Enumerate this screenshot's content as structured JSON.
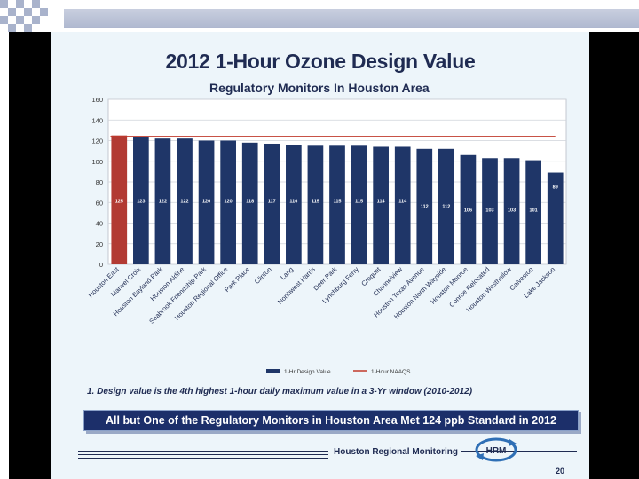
{
  "slide": {
    "title": "2012 1-Hour Ozone Design Value",
    "subtitle": "Regulatory Monitors In Houston Area",
    "footnote": "1.   Design value is the 4th highest 1-hour daily maximum value in a 3-Yr window (2010-2012)",
    "banner": "All but One of the Regulatory Monitors in Houston Area Met 124 ppb Standard in 2012",
    "org": "Houston Regional Monitoring",
    "logo_text": "HRM",
    "page_number": "20"
  },
  "colors": {
    "bar": "#1f3668",
    "highlight_bar": "#b23a33",
    "standard_line": "#c0392b",
    "text": "#1f2b52"
  },
  "chart_data": {
    "type": "bar",
    "categories": [
      "Houston East",
      "Manvel Croix",
      "Houston Bayland Park",
      "Houston Aldine",
      "Seabrook Friendship Park",
      "Houston Regional Office",
      "Park Place",
      "Clinton",
      "Lang",
      "Northwest Harris",
      "Deer Park",
      "Lynchburg Ferry",
      "Croquet",
      "Channelview",
      "Houston Texas Avenue",
      "Houston North Wayside",
      "Houston Monroe",
      "Conroe Relocated",
      "Houston Westhollow",
      "Galveston",
      "Lake Jackson"
    ],
    "series": [
      {
        "name": "1-Hr Design Value",
        "values": [
          125,
          123,
          122,
          122,
          120,
          120,
          118,
          117,
          116,
          115,
          115,
          115,
          114,
          114,
          112,
          112,
          106,
          103,
          103,
          101,
          89
        ]
      }
    ],
    "reference_lines": [
      {
        "name": "1-Hour NAAQS",
        "value": 124
      }
    ],
    "highlight_index": 0,
    "ylim": [
      0,
      160
    ],
    "yticks": [
      0,
      20,
      40,
      60,
      80,
      100,
      120,
      140,
      160
    ],
    "grid": true,
    "legend_position": "bottom-right",
    "title": "",
    "xlabel": "",
    "ylabel": ""
  }
}
